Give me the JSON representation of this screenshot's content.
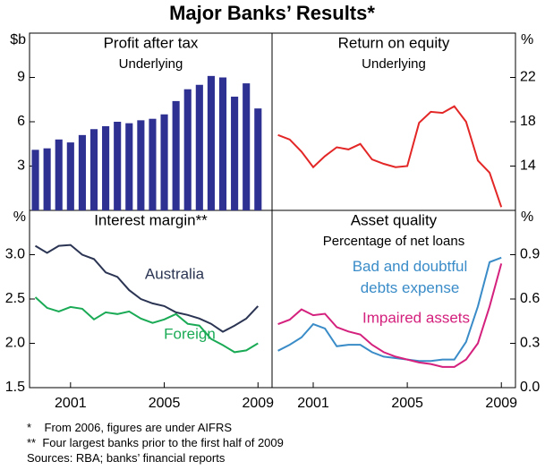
{
  "title": "Major Banks’ Results*",
  "notes": [
    "*    From 2006, figures are under AIFRS",
    "**  Four largest banks prior to the first half of 2009",
    "Sources: RBA; banks’ financial reports"
  ],
  "chart_data": [
    {
      "type": "bar",
      "title": "Profit after tax",
      "subtitle": "Underlying",
      "ylabel": "$b",
      "axis_side": "left",
      "x": [
        1999.5,
        2000,
        2000.5,
        2001,
        2001.5,
        2002,
        2002.5,
        2003,
        2003.5,
        2004,
        2004.5,
        2005,
        2005.5,
        2006,
        2006.5,
        2007,
        2007.5,
        2008,
        2008.5,
        2009
      ],
      "xlim": [
        1999.25,
        2009.6
      ],
      "ylim": [
        0,
        12
      ],
      "yticks": [
        3,
        6,
        9
      ],
      "series": [
        {
          "name": "Profit after tax",
          "color": "#2e3192",
          "values": [
            4.1,
            4.2,
            4.8,
            4.6,
            5.1,
            5.5,
            5.7,
            6.0,
            5.9,
            6.1,
            6.2,
            6.5,
            7.4,
            8.2,
            8.5,
            9.1,
            9.0,
            7.7,
            8.6,
            6.9
          ]
        }
      ]
    },
    {
      "type": "line",
      "title": "Return on equity",
      "subtitle": "Underlying",
      "ylabel": "%",
      "axis_side": "right",
      "x": [
        1999.5,
        2000,
        2000.5,
        2001,
        2001.5,
        2002,
        2002.5,
        2003,
        2003.5,
        2004,
        2004.5,
        2005,
        2005.5,
        2006,
        2006.5,
        2007,
        2007.5,
        2008,
        2008.5,
        2009
      ],
      "xlim": [
        1999.25,
        2009.6
      ],
      "ylim": [
        10,
        26
      ],
      "yticks": [
        14,
        18,
        22
      ],
      "series": [
        {
          "name": "Return on equity",
          "color": "#e32626",
          "values": [
            16.8,
            16.4,
            15.3,
            13.9,
            14.9,
            15.7,
            15.5,
            16.0,
            14.6,
            14.2,
            13.9,
            14.0,
            17.9,
            18.9,
            18.8,
            19.4,
            18.0,
            14.5,
            13.4,
            10.3
          ]
        }
      ]
    },
    {
      "type": "line",
      "title": "Interest margin**",
      "ylabel": "%",
      "axis_side": "left",
      "x": [
        1999.5,
        2000,
        2000.5,
        2001,
        2001.5,
        2002,
        2002.5,
        2003,
        2003.5,
        2004,
        2004.5,
        2005,
        2005.5,
        2006,
        2006.5,
        2007,
        2007.5,
        2008,
        2008.5,
        2009
      ],
      "xlim": [
        1999.25,
        2009.6
      ],
      "xticks": [
        2001,
        2005,
        2009
      ],
      "ylim": [
        1.5,
        3.5
      ],
      "yticks": [
        1.5,
        {
          "value": 2,
          "label": "2.0"
        },
        2.5,
        {
          "value": 3,
          "label": "3.0"
        }
      ],
      "series": [
        {
          "name": "Australia",
          "color": "#2b3553",
          "values": [
            3.1,
            3.02,
            3.1,
            3.11,
            3.0,
            2.95,
            2.8,
            2.75,
            2.6,
            2.5,
            2.45,
            2.42,
            2.35,
            2.32,
            2.28,
            2.22,
            2.13,
            2.2,
            2.28,
            2.42
          ]
        },
        {
          "name": "Foreign",
          "color": "#1aaa55",
          "values": [
            2.52,
            2.4,
            2.36,
            2.41,
            2.39,
            2.27,
            2.35,
            2.33,
            2.36,
            2.28,
            2.23,
            2.27,
            2.33,
            2.22,
            2.2,
            2.05,
            1.98,
            1.9,
            1.92,
            2.0
          ]
        }
      ]
    },
    {
      "type": "line",
      "title": "Asset quality",
      "subtitle": "Percentage of net loans",
      "ylabel": "%",
      "axis_side": "right",
      "x": [
        1999.5,
        2000,
        2000.5,
        2001,
        2001.5,
        2002,
        2002.5,
        2003,
        2003.5,
        2004,
        2004.5,
        2005,
        2005.5,
        2006,
        2006.5,
        2007,
        2007.5,
        2008,
        2008.5,
        2009
      ],
      "xlim": [
        1999.25,
        2009.6
      ],
      "xticks": [
        2001,
        2005,
        2009
      ],
      "ylim": [
        0,
        1.2
      ],
      "yticks": [
        {
          "value": 0,
          "label": "0.0"
        },
        0.3,
        0.6,
        0.9
      ],
      "series": [
        {
          "name": "Bad and doubtful debts expense",
          "color": "#3a8cc8",
          "values": [
            0.25,
            0.29,
            0.34,
            0.43,
            0.4,
            0.28,
            0.29,
            0.29,
            0.24,
            0.21,
            0.2,
            0.19,
            0.18,
            0.18,
            0.19,
            0.19,
            0.31,
            0.55,
            0.85,
            0.88
          ]
        },
        {
          "name": "Impaired assets",
          "color": "#d4217d",
          "values": [
            0.43,
            0.46,
            0.53,
            0.49,
            0.5,
            0.41,
            0.38,
            0.36,
            0.29,
            0.24,
            0.21,
            0.19,
            0.17,
            0.16,
            0.14,
            0.14,
            0.19,
            0.3,
            0.55,
            0.84
          ]
        }
      ]
    }
  ]
}
